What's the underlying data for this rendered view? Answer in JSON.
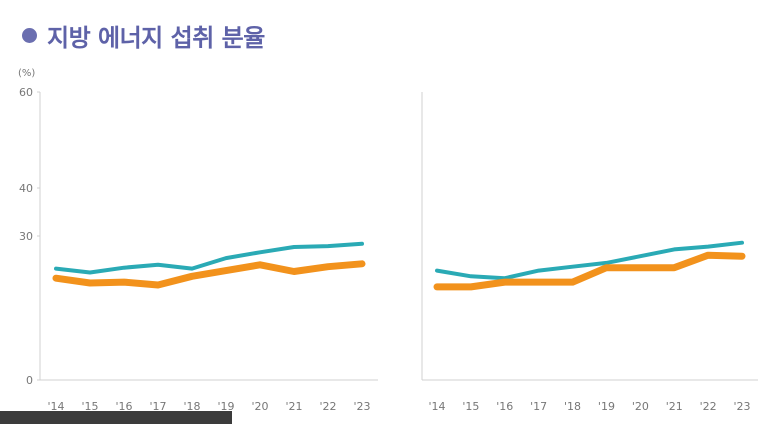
{
  "title": "지방 에너지 섭취 분율",
  "colors": {
    "accent_title": "#5e62a8",
    "series_teal": "#2aaab5",
    "series_orange": "#f2921c",
    "axis": "#d0d0d0"
  },
  "chart_data": [
    {
      "type": "line",
      "ylabel": "(%)",
      "ylim": [
        0,
        60
      ],
      "yticks": [
        0,
        30,
        40,
        60
      ],
      "grid": false,
      "categories": [
        "'14",
        "'15",
        "'16",
        "'17",
        "'18",
        "'19",
        "'20",
        "'21",
        "'22",
        "'23"
      ],
      "series": [
        {
          "color": "#2aaab5",
          "values": [
            23.2,
            22.4,
            23.4,
            24.0,
            23.2,
            25.4,
            26.6,
            27.7,
            27.9,
            28.4
          ]
        },
        {
          "color": "#f2921c",
          "values": [
            21.2,
            20.2,
            20.4,
            19.8,
            21.6,
            22.8,
            24.0,
            22.6,
            23.6,
            24.2
          ]
        }
      ]
    },
    {
      "type": "line",
      "ylim": [
        0,
        60
      ],
      "grid": false,
      "categories": [
        "'14",
        "'15",
        "'16",
        "'17",
        "'18",
        "'19",
        "'20",
        "'21",
        "'22",
        "'23"
      ],
      "series": [
        {
          "color": "#2aaab5",
          "values": [
            22.8,
            21.6,
            21.2,
            22.8,
            23.6,
            24.4,
            25.8,
            27.2,
            27.8,
            28.6
          ]
        },
        {
          "color": "#f2921c",
          "values": [
            19.4,
            19.4,
            20.4,
            20.4,
            20.4,
            23.4,
            23.4,
            23.4,
            26.0,
            25.8
          ]
        }
      ]
    }
  ]
}
